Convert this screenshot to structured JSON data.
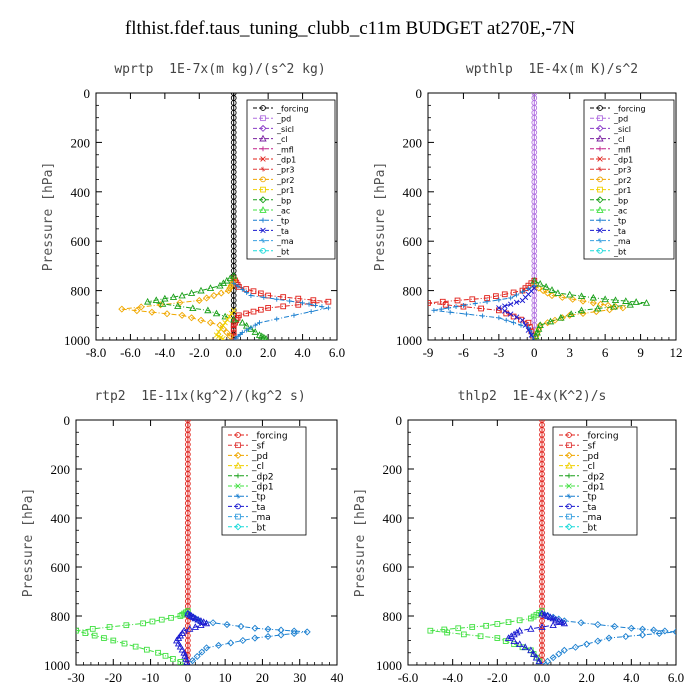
{
  "figure": {
    "title": "flthist.fdef.taus_tuning_clubb_c11m  BUDGET at270E,-7N"
  },
  "chart_data": [
    {
      "type": "line",
      "title": "wprtp  1E-7x(m kg)/(s^2 kg)",
      "ylabel": "Pressure [hPa]",
      "xlim": [
        -8,
        6
      ],
      "ylim": [
        1000,
        0
      ],
      "xticks": [
        "-8.0",
        "-6.0",
        "-4.0",
        "-2.0",
        "0.0",
        "2.0",
        "4.0",
        "6.0"
      ],
      "yticks": [
        "0",
        "200",
        "400",
        "600",
        "800",
        "1000"
      ],
      "legend": [
        "_forcing",
        "_pd",
        "_sicl",
        "_cl",
        "_mfl",
        "_dp1",
        "_pr3",
        "_pr2",
        "_pr1",
        "_bp",
        "_ac",
        "_tp",
        "_ta",
        "_ma",
        "_bt"
      ],
      "series": [
        {
          "name": "_forcing",
          "color": "#000000",
          "points": [
            [
              0,
              0
            ],
            [
              0,
              1000
            ]
          ]
        },
        {
          "name": "_dp1",
          "color": "#e0201a",
          "points": [
            [
              0,
              750
            ],
            [
              0.3,
              785
            ],
            [
              2.0,
              820
            ],
            [
              5.5,
              845
            ],
            [
              2.0,
              870
            ],
            [
              0.3,
              900
            ],
            [
              0,
              940
            ],
            [
              0,
              1000
            ]
          ]
        },
        {
          "name": "_pr1",
          "color": "#f0a800",
          "points": [
            [
              0,
              760
            ],
            [
              -0.3,
              800
            ],
            [
              -2.0,
              840
            ],
            [
              -6.5,
              875
            ],
            [
              -3.0,
              900
            ],
            [
              -0.8,
              940
            ],
            [
              0,
              1000
            ]
          ]
        },
        {
          "name": "_bp",
          "color": "#1aa01a",
          "points": [
            [
              0,
              740
            ],
            [
              -0.8,
              780
            ],
            [
              -3.0,
              820
            ],
            [
              -5.0,
              845
            ],
            [
              -1.5,
              880
            ],
            [
              0.5,
              930
            ],
            [
              1.5,
              980
            ],
            [
              2.0,
              1000
            ]
          ]
        },
        {
          "name": "_tp",
          "color": "#1a7fd0",
          "points": [
            [
              0,
              770
            ],
            [
              1.0,
              820
            ],
            [
              4.0,
              850
            ],
            [
              5.5,
              870
            ],
            [
              1.5,
              930
            ],
            [
              0.5,
              970
            ],
            [
              0,
              1000
            ]
          ]
        },
        {
          "name": "_ac",
          "color": "#f0d000",
          "points": [
            [
              0,
              880
            ],
            [
              -0.5,
              930
            ],
            [
              -1.0,
              980
            ],
            [
              -0.5,
              1000
            ]
          ]
        }
      ]
    },
    {
      "type": "line",
      "title": "wpthlp  1E-4x(m K)/s^2",
      "ylabel": "Pressure [hPa]",
      "xlim": [
        -9,
        12
      ],
      "ylim": [
        1000,
        0
      ],
      "xticks": [
        "-9",
        "-6",
        "-3",
        "0",
        "3",
        "6",
        "9",
        "12"
      ],
      "yticks": [
        "0",
        "200",
        "400",
        "600",
        "800",
        "1000"
      ],
      "legend": [
        "_forcing",
        "_pd",
        "_sicl",
        "_cl",
        "_mfl",
        "_dp1",
        "_pr3",
        "_pr2",
        "_pr1",
        "_bp",
        "_ac",
        "_tp",
        "_ta",
        "_ma",
        "_bt"
      ],
      "series": [
        {
          "name": "_forcing",
          "color": "#b06ee0",
          "points": [
            [
              0,
              0
            ],
            [
              0,
              1000
            ]
          ]
        },
        {
          "name": "_dp1",
          "color": "#e0201a",
          "points": [
            [
              0,
              760
            ],
            [
              -1.0,
              800
            ],
            [
              -4.0,
              830
            ],
            [
              -9.0,
              850
            ],
            [
              -3.0,
              880
            ],
            [
              -0.5,
              930
            ],
            [
              0,
              1000
            ]
          ]
        },
        {
          "name": "_pr1",
          "color": "#f0a800",
          "points": [
            [
              0,
              780
            ],
            [
              1.5,
              820
            ],
            [
              5.0,
              850
            ],
            [
              7.5,
              870
            ],
            [
              3.0,
              900
            ],
            [
              0.5,
              940
            ],
            [
              0,
              1000
            ]
          ]
        },
        {
          "name": "_bp",
          "color": "#1aa01a",
          "points": [
            [
              0,
              760
            ],
            [
              2.0,
              810
            ],
            [
              6.0,
              835
            ],
            [
              9.5,
              850
            ],
            [
              4.0,
              880
            ],
            [
              0.5,
              940
            ],
            [
              0,
              1000
            ]
          ]
        },
        {
          "name": "_tp",
          "color": "#1a7fd0",
          "points": [
            [
              0,
              780
            ],
            [
              -2.0,
              830
            ],
            [
              -6.0,
              860
            ],
            [
              -8.5,
              880
            ],
            [
              -3.0,
              910
            ],
            [
              -0.5,
              950
            ],
            [
              0,
              1000
            ]
          ]
        },
        {
          "name": "_ta",
          "color": "#1a1ad0",
          "points": [
            [
              0,
              790
            ],
            [
              -1.0,
              840
            ],
            [
              -3.0,
              870
            ],
            [
              -1.0,
              920
            ],
            [
              0,
              1000
            ]
          ]
        }
      ]
    },
    {
      "type": "line",
      "title": "rtp2  1E-11x(kg^2)/(kg^2 s)",
      "ylabel": "Pressure [hPa]",
      "xlim": [
        -30,
        40
      ],
      "ylim": [
        1000,
        0
      ],
      "xticks": [
        "-30",
        "-20",
        "-10",
        "0",
        "10",
        "20",
        "30",
        "40"
      ],
      "yticks": [
        "0",
        "200",
        "400",
        "600",
        "800",
        "1000"
      ],
      "legend": [
        "_forcing",
        "_sf",
        "_pd",
        "_cl",
        "_dp2",
        "_dp1",
        "_tp",
        "_ta",
        "_ma",
        "_bt"
      ],
      "series": [
        {
          "name": "_forcing",
          "color": "#e0201a",
          "points": [
            [
              0,
              0
            ],
            [
              0,
              1000
            ]
          ]
        },
        {
          "name": "_dp1",
          "color": "#40e040",
          "points": [
            [
              0,
              780
            ],
            [
              -2.0,
              800
            ],
            [
              -12.0,
              830
            ],
            [
              -30.0,
              860
            ],
            [
              -20.0,
              900
            ],
            [
              -8.0,
              950
            ],
            [
              0,
              1000
            ]
          ]
        },
        {
          "name": "_tp",
          "color": "#1a7fd0",
          "points": [
            [
              0,
              790
            ],
            [
              3.0,
              820
            ],
            [
              18.0,
              850
            ],
            [
              32.0,
              865
            ],
            [
              18.0,
              890
            ],
            [
              5.0,
              930
            ],
            [
              0,
              1000
            ]
          ]
        },
        {
          "name": "_ta",
          "color": "#1a1ad0",
          "points": [
            [
              0,
              790
            ],
            [
              2.0,
              810
            ],
            [
              5.0,
              830
            ],
            [
              -1.0,
              860
            ],
            [
              -3.0,
              900
            ],
            [
              -1.0,
              950
            ],
            [
              0,
              1000
            ]
          ]
        }
      ]
    },
    {
      "type": "line",
      "title": "thlp2  1E-4x(K^2)/s",
      "ylabel": "Pressure [hPa]",
      "xlim": [
        -6,
        6
      ],
      "ylim": [
        1000,
        0
      ],
      "xticks": [
        "-6.0",
        "-4.0",
        "-2.0",
        "0.0",
        "2.0",
        "4.0",
        "6.0"
      ],
      "yticks": [
        "0",
        "200",
        "400",
        "600",
        "800",
        "1000"
      ],
      "legend": [
        "_forcing",
        "_sf",
        "_pd",
        "_cl",
        "_dp2",
        "_dp1",
        "_tp",
        "_ta",
        "_ma",
        "_bt"
      ],
      "series": [
        {
          "name": "_forcing",
          "color": "#e0201a",
          "points": [
            [
              0,
              0
            ],
            [
              0,
              1000
            ]
          ]
        },
        {
          "name": "_dp1",
          "color": "#40e040",
          "points": [
            [
              0,
              780
            ],
            [
              -0.5,
              810
            ],
            [
              -2.5,
              840
            ],
            [
              -5.0,
              860
            ],
            [
              -2.0,
              890
            ],
            [
              -0.5,
              940
            ],
            [
              0,
              1000
            ]
          ]
        },
        {
          "name": "_tp",
          "color": "#1a7fd0",
          "points": [
            [
              0,
              790
            ],
            [
              1.0,
              820
            ],
            [
              4.0,
              850
            ],
            [
              6.0,
              865
            ],
            [
              3.0,
              890
            ],
            [
              1.0,
              940
            ],
            [
              0,
              1000
            ]
          ]
        },
        {
          "name": "_ta",
          "color": "#1a1ad0",
          "points": [
            [
              0,
              790
            ],
            [
              0.5,
              810
            ],
            [
              1.0,
              830
            ],
            [
              -1.0,
              860
            ],
            [
              -1.5,
              890
            ],
            [
              -0.5,
              940
            ],
            [
              0,
              1000
            ]
          ]
        }
      ]
    }
  ]
}
